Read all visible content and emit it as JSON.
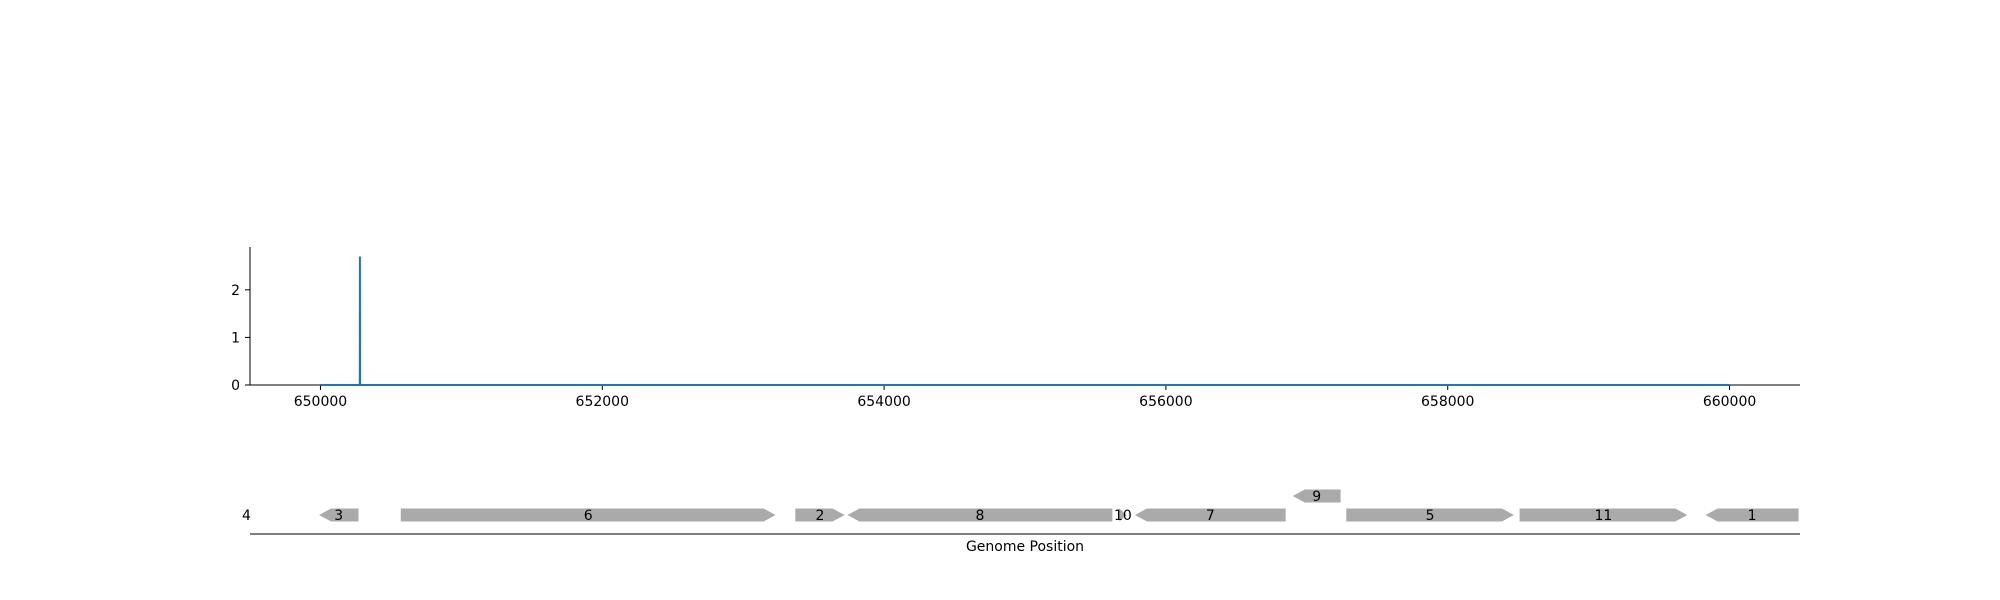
{
  "chart_data": [
    {
      "type": "line",
      "title": "",
      "xlabel": "",
      "ylabel": "",
      "xlim": [
        649500,
        660500
      ],
      "ylim": [
        0,
        2.9
      ],
      "x_ticks": [
        650000,
        652000,
        654000,
        656000,
        658000,
        660000
      ],
      "y_ticks": [
        0,
        1,
        2
      ],
      "grid": false,
      "color": "#1f77b4",
      "series": [
        {
          "x": [
            650000,
            650279,
            650280,
            650281,
            660000
          ],
          "values": [
            0,
            0,
            2.7,
            0,
            0
          ]
        }
      ]
    },
    {
      "type": "gene-track",
      "xlabel": "Genome Position",
      "xlim": [
        649500,
        660500
      ],
      "color": "#aaaaaa",
      "genes": [
        {
          "label": "4",
          "start": 649460,
          "end": 649490,
          "strand": 1,
          "row": 0
        },
        {
          "label": "3",
          "start": 649990,
          "end": 650270,
          "strand": -1,
          "row": 0
        },
        {
          "label": "6",
          "start": 650570,
          "end": 653230,
          "strand": 1,
          "row": 0
        },
        {
          "label": "2",
          "start": 653370,
          "end": 653720,
          "strand": 1,
          "row": 0
        },
        {
          "label": "8",
          "start": 653740,
          "end": 655620,
          "strand": -1,
          "row": 0
        },
        {
          "label": "10",
          "start": 655670,
          "end": 655720,
          "strand": 1,
          "row": 0
        },
        {
          "label": "7",
          "start": 655780,
          "end": 656850,
          "strand": -1,
          "row": 0
        },
        {
          "label": "9",
          "start": 656900,
          "end": 657240,
          "strand": -1,
          "row": 1
        },
        {
          "label": "5",
          "start": 657280,
          "end": 658470,
          "strand": 1,
          "row": 0
        },
        {
          "label": "11",
          "start": 658510,
          "end": 659700,
          "strand": 1,
          "row": 0
        },
        {
          "label": "1",
          "start": 659830,
          "end": 660490,
          "strand": -1,
          "row": 0
        }
      ]
    }
  ]
}
